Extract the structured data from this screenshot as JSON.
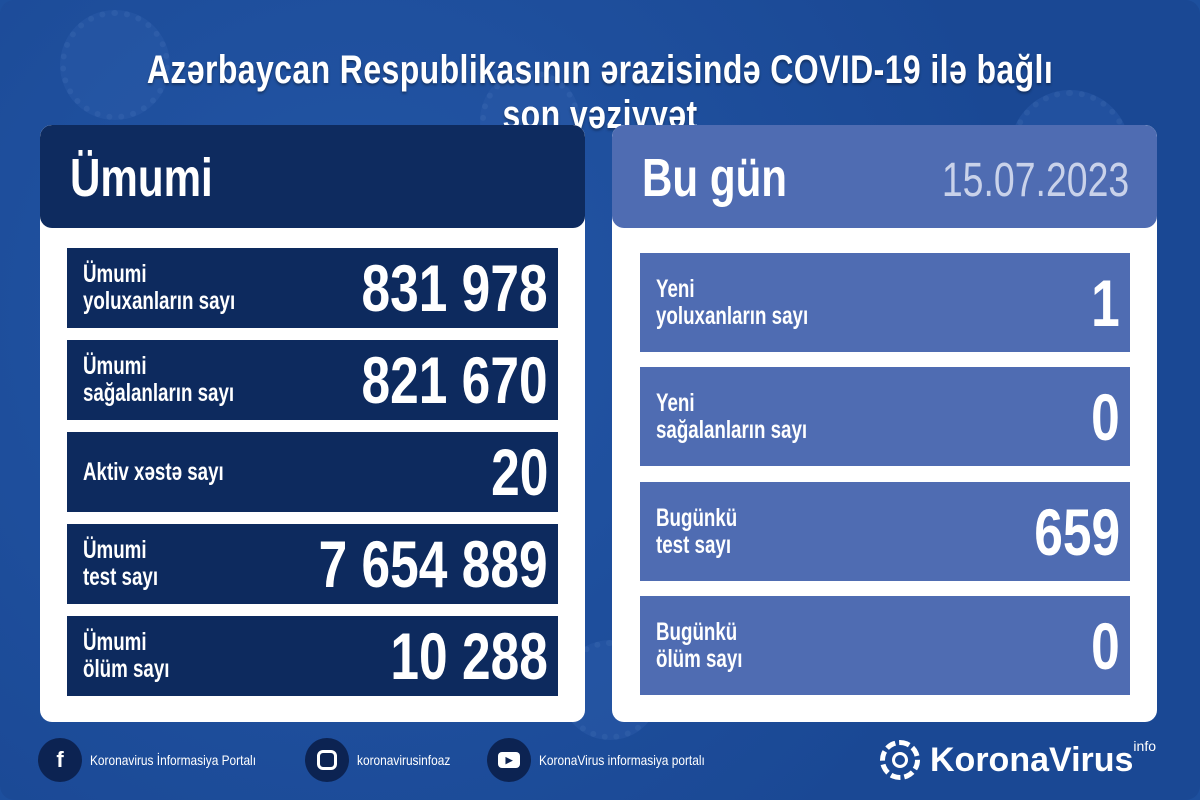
{
  "title": "Azərbaycan Respublikasının ərazisində COVID-19 ilə bağlı son vəziyyət",
  "total": {
    "heading": "Ümumi",
    "rows": [
      {
        "label": "Ümumi\nyoluxanların sayı",
        "value": "831 978"
      },
      {
        "label": "Ümumi\nsağalanların sayı",
        "value": "821 670"
      },
      {
        "label": "Aktiv xəstə sayı",
        "value": "20"
      },
      {
        "label": "Ümumi\ntest sayı",
        "value": "7 654 889"
      },
      {
        "label": "Ümumi\nölüm sayı",
        "value": "10 288"
      }
    ]
  },
  "today": {
    "heading": "Bu gün",
    "date": "15.07.2023",
    "rows": [
      {
        "label": "Yeni\nyoluxanların sayı",
        "value": "1"
      },
      {
        "label": "Yeni\nsağalanların sayı",
        "value": "0"
      },
      {
        "label": "Bugünkü\ntest sayı",
        "value": "659"
      },
      {
        "label": "Bugünkü\nölüm sayı",
        "value": "0"
      }
    ]
  },
  "footer": {
    "facebook": "Koronavirus İnformasiya Portalı",
    "instagram": "koronavirusinfoaz",
    "youtube": "KoronaVirus informasiya portalı",
    "logo": "KoronaVirus",
    "logo_sup": "info"
  },
  "colors": {
    "background": "#1d4f9d",
    "total_panel": "#0d2a5e",
    "today_panel": "#4f6cb2"
  }
}
